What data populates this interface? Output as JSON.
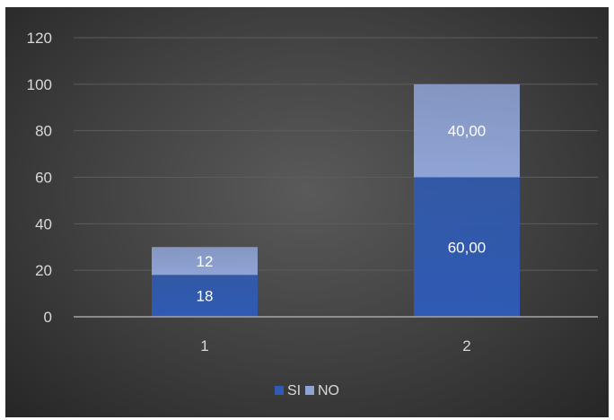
{
  "chart_data": {
    "type": "bar",
    "stacked": true,
    "categories": [
      "1",
      "2"
    ],
    "series": [
      {
        "name": "SI",
        "values": [
          18,
          60
        ],
        "labels": [
          "18",
          "60,00"
        ],
        "color": "#2f5bb5"
      },
      {
        "name": "NO",
        "values": [
          12,
          40
        ],
        "labels": [
          "12",
          "40,00"
        ],
        "color": "#8fa4d6"
      }
    ],
    "y_ticks": [
      "0",
      "20",
      "40",
      "60",
      "80",
      "100",
      "120"
    ],
    "ylim": [
      0,
      120
    ],
    "grid": true,
    "legend": "bottom",
    "background": "#3f3f3f"
  }
}
